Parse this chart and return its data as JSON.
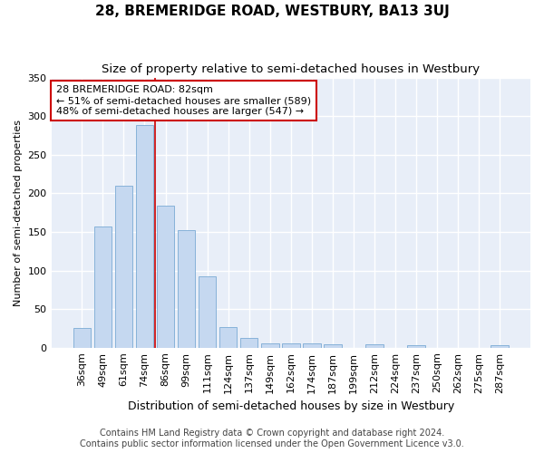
{
  "title": "28, BREMERIDGE ROAD, WESTBURY, BA13 3UJ",
  "subtitle": "Size of property relative to semi-detached houses in Westbury",
  "xlabel": "Distribution of semi-detached houses by size in Westbury",
  "ylabel": "Number of semi-detached properties",
  "categories": [
    "36sqm",
    "49sqm",
    "61sqm",
    "74sqm",
    "86sqm",
    "99sqm",
    "111sqm",
    "124sqm",
    "137sqm",
    "149sqm",
    "162sqm",
    "174sqm",
    "187sqm",
    "199sqm",
    "212sqm",
    "224sqm",
    "237sqm",
    "250sqm",
    "262sqm",
    "275sqm",
    "287sqm"
  ],
  "values": [
    25,
    157,
    210,
    288,
    184,
    152,
    92,
    27,
    13,
    6,
    6,
    5,
    4,
    0,
    4,
    0,
    3,
    0,
    0,
    0,
    3
  ],
  "bar_color": "#c5d8f0",
  "bar_edge_color": "#7aaad4",
  "vline_x": 3.5,
  "vline_color": "#cc0000",
  "annotation_text": "28 BREMERIDGE ROAD: 82sqm\n← 51% of semi-detached houses are smaller (589)\n48% of semi-detached houses are larger (547) →",
  "annotation_box_color": "#ffffff",
  "annotation_box_edge_color": "#cc0000",
  "ylim": [
    0,
    350
  ],
  "yticks": [
    0,
    50,
    100,
    150,
    200,
    250,
    300,
    350
  ],
  "footer1": "Contains HM Land Registry data © Crown copyright and database right 2024.",
  "footer2": "Contains public sector information licensed under the Open Government Licence v3.0.",
  "background_color": "#ffffff",
  "plot_background_color": "#e8eef8",
  "grid_color": "#ffffff",
  "title_fontsize": 11,
  "subtitle_fontsize": 9.5,
  "xlabel_fontsize": 9,
  "ylabel_fontsize": 8,
  "tick_fontsize": 8,
  "annotation_fontsize": 8,
  "footer_fontsize": 7
}
